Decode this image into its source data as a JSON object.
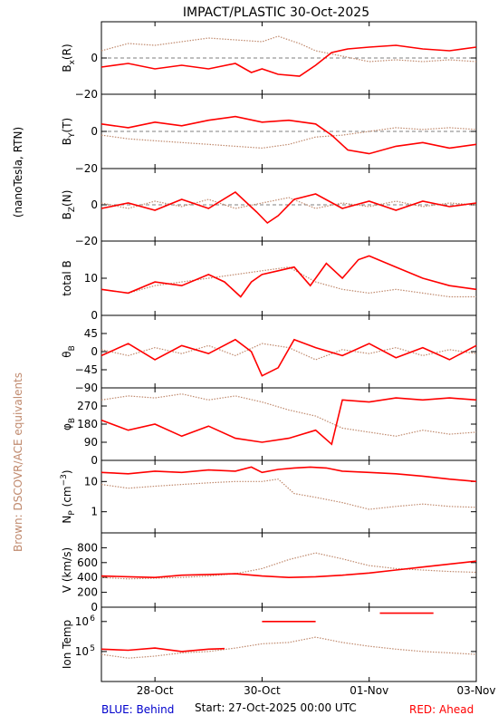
{
  "title": "IMPACT/PLASTIC   30-Oct-2025",
  "side_label_units": "(nanoTesla, RTN)",
  "side_label_brown": "Brown: DSCOVR/ACE equivalents",
  "footer": {
    "blue_label": "BLUE: Behind",
    "start_label": "Start: 27-Oct-2025 00:00 UTC",
    "red_label": "RED: Ahead"
  },
  "colors": {
    "ahead": "#ff0000",
    "brown": "#c08a6e",
    "behind": "#0000cc",
    "axis": "#000000"
  },
  "x_axis": {
    "range_days": [
      0,
      7
    ],
    "tick_labels": [
      {
        "day": 1,
        "label": "28-Oct"
      },
      {
        "day": 3,
        "label": "30-Oct"
      },
      {
        "day": 5,
        "label": "01-Nov"
      },
      {
        "day": 7,
        "label": "03-Nov"
      }
    ]
  },
  "chart_data": [
    {
      "type": "line",
      "ylabel": "Bx(R)",
      "ylabel_main": "B",
      "ylabel_sub": "x",
      "ylabel_rest": "(R)",
      "ylim": [
        -20,
        20
      ],
      "yticks": [
        {
          "v": 0,
          "l": "0"
        },
        {
          "v": -20,
          "l": "−20"
        }
      ],
      "zero_line": true,
      "series": [
        {
          "color_key": "ahead",
          "x": [
            0,
            0.5,
            1,
            1.5,
            2,
            2.5,
            2.8,
            3,
            3.3,
            3.7,
            4,
            4.3,
            4.6,
            5,
            5.5,
            6,
            6.5,
            7
          ],
          "y": [
            -5,
            -3,
            -6,
            -4,
            -6,
            -3,
            -8,
            -6,
            -9,
            -10,
            -4,
            3,
            5,
            6,
            7,
            5,
            4,
            6
          ]
        },
        {
          "color_key": "brown",
          "x": [
            0,
            0.5,
            1,
            1.5,
            2,
            2.5,
            3,
            3.3,
            3.7,
            4,
            4.5,
            5,
            5.5,
            6,
            6.5,
            7
          ],
          "y": [
            4,
            8,
            7,
            9,
            11,
            10,
            9,
            12,
            8,
            4,
            1,
            -2,
            -1,
            -2,
            -1,
            -2
          ]
        }
      ]
    },
    {
      "type": "line",
      "ylabel": "By(T)",
      "ylabel_main": "B",
      "ylabel_sub": "Y",
      "ylabel_rest": "(T)",
      "ylim": [
        -20,
        20
      ],
      "yticks": [
        {
          "v": 0,
          "l": "0"
        },
        {
          "v": -20,
          "l": "−20"
        }
      ],
      "zero_line": true,
      "series": [
        {
          "color_key": "ahead",
          "x": [
            0,
            0.5,
            1,
            1.5,
            2,
            2.5,
            3,
            3.5,
            4,
            4.3,
            4.6,
            5,
            5.5,
            6,
            6.5,
            7
          ],
          "y": [
            4,
            2,
            5,
            3,
            6,
            8,
            5,
            6,
            4,
            -2,
            -10,
            -12,
            -8,
            -6,
            -9,
            -7
          ]
        },
        {
          "color_key": "brown",
          "x": [
            0,
            0.5,
            1,
            1.5,
            2,
            2.5,
            3,
            3.5,
            4,
            4.5,
            5,
            5.5,
            6,
            6.5,
            7
          ],
          "y": [
            -2,
            -4,
            -5,
            -6,
            -7,
            -8,
            -9,
            -7,
            -3,
            -2,
            0,
            2,
            1,
            2,
            1
          ]
        }
      ]
    },
    {
      "type": "line",
      "ylabel": "Bz(N)",
      "ylabel_main": "B",
      "ylabel_sub": "Z",
      "ylabel_rest": "(N)",
      "ylim": [
        -20,
        20
      ],
      "yticks": [
        {
          "v": 0,
          "l": "0"
        },
        {
          "v": -20,
          "l": "−20"
        }
      ],
      "zero_line": true,
      "series": [
        {
          "color_key": "ahead",
          "x": [
            0,
            0.5,
            1,
            1.5,
            2,
            2.5,
            2.9,
            3.1,
            3.3,
            3.6,
            4,
            4.5,
            5,
            5.5,
            6,
            6.5,
            7
          ],
          "y": [
            -2,
            1,
            -3,
            3,
            -2,
            7,
            -4,
            -10,
            -6,
            3,
            6,
            -2,
            2,
            -3,
            2,
            -1,
            1
          ]
        },
        {
          "color_key": "brown",
          "x": [
            0,
            0.5,
            1,
            1.5,
            2,
            2.5,
            3,
            3.5,
            4,
            4.5,
            5,
            5.5,
            6,
            6.5,
            7
          ],
          "y": [
            1,
            -2,
            2,
            -1,
            3,
            -2,
            1,
            4,
            -2,
            1,
            -1,
            2,
            -1,
            1,
            0
          ]
        }
      ]
    },
    {
      "type": "line",
      "ylabel": "total B",
      "ylabel_main": "total B",
      "ylabel_sub": "",
      "ylabel_rest": "",
      "ylim": [
        0,
        20
      ],
      "yticks": [
        {
          "v": 10,
          "l": "10"
        },
        {
          "v": 0,
          "l": "0"
        }
      ],
      "zero_line": false,
      "series": [
        {
          "color_key": "ahead",
          "x": [
            0,
            0.5,
            1,
            1.5,
            2,
            2.3,
            2.6,
            2.8,
            3,
            3.3,
            3.6,
            3.9,
            4.2,
            4.5,
            4.8,
            5,
            5.5,
            6,
            6.5,
            7
          ],
          "y": [
            7,
            6,
            9,
            8,
            11,
            9,
            5,
            9,
            11,
            12,
            13,
            8,
            14,
            10,
            15,
            16,
            13,
            10,
            8,
            7
          ]
        },
        {
          "color_key": "brown",
          "x": [
            0,
            0.5,
            1,
            1.5,
            2,
            2.5,
            3,
            3.5,
            4,
            4.5,
            5,
            5.5,
            6,
            6.5,
            7
          ],
          "y": [
            7,
            6,
            8,
            9,
            10,
            11,
            12,
            13,
            9,
            7,
            6,
            7,
            6,
            5,
            5
          ]
        }
      ]
    },
    {
      "type": "line",
      "ylabel": "θB",
      "ylabel_main": "θ",
      "ylabel_sub": "B",
      "ylabel_rest": "",
      "ylim": [
        -90,
        90
      ],
      "yticks": [
        {
          "v": 45,
          "l": "45"
        },
        {
          "v": 0,
          "l": "0"
        },
        {
          "v": -45,
          "l": "−45"
        },
        {
          "v": -90,
          "l": "−90"
        }
      ],
      "zero_line": false,
      "series": [
        {
          "color_key": "ahead",
          "x": [
            0,
            0.5,
            1,
            1.5,
            2,
            2.5,
            2.8,
            3,
            3.3,
            3.6,
            4,
            4.5,
            5,
            5.5,
            6,
            6.5,
            7
          ],
          "y": [
            -10,
            20,
            -20,
            15,
            -5,
            30,
            0,
            -60,
            -40,
            30,
            10,
            -10,
            20,
            -15,
            10,
            -20,
            15
          ]
        },
        {
          "color_key": "brown",
          "x": [
            0,
            0.5,
            1,
            1.5,
            2,
            2.5,
            3,
            3.5,
            4,
            4.5,
            5,
            5.5,
            6,
            6.5,
            7
          ],
          "y": [
            5,
            -10,
            10,
            -5,
            15,
            -10,
            20,
            10,
            -20,
            5,
            -5,
            10,
            -10,
            5,
            -5
          ]
        }
      ]
    },
    {
      "type": "line",
      "ylabel": "φB",
      "ylabel_main": "φ",
      "ylabel_sub": "B",
      "ylabel_rest": "",
      "ylim": [
        0,
        360
      ],
      "yticks": [
        {
          "v": 270,
          "l": "270"
        },
        {
          "v": 180,
          "l": "180"
        },
        {
          "v": 90,
          "l": "90"
        },
        {
          "v": 0,
          "l": "0"
        }
      ],
      "zero_line": false,
      "series": [
        {
          "color_key": "ahead",
          "x": [
            0,
            0.5,
            1,
            1.5,
            2,
            2.5,
            3,
            3.5,
            4,
            4.3,
            4.5,
            5,
            5.5,
            6,
            6.5,
            7
          ],
          "y": [
            200,
            150,
            180,
            120,
            170,
            110,
            90,
            110,
            150,
            80,
            300,
            290,
            310,
            300,
            310,
            300
          ]
        },
        {
          "color_key": "brown",
          "x": [
            0,
            0.5,
            1,
            1.5,
            2,
            2.5,
            3,
            3.5,
            4,
            4.5,
            5,
            5.5,
            6,
            6.5,
            7
          ],
          "y": [
            300,
            320,
            310,
            330,
            300,
            320,
            290,
            250,
            220,
            160,
            140,
            120,
            150,
            130,
            140
          ]
        }
      ]
    },
    {
      "type": "line",
      "ylabel": "Np (cm−3)",
      "ylabel_main": "N",
      "ylabel_sub": "P",
      "ylabel_rest": " (cm",
      "ylabel_sup": "−3",
      "ylabel_close": ")",
      "log": true,
      "ylim": [
        0.2,
        50
      ],
      "yticks": [
        {
          "v": 10,
          "l": "10"
        },
        {
          "v": 1,
          "l": "1"
        }
      ],
      "zero_line": false,
      "series": [
        {
          "color_key": "ahead",
          "x": [
            0,
            0.5,
            1,
            1.5,
            2,
            2.5,
            2.8,
            3,
            3.3,
            3.6,
            3.9,
            4.2,
            4.5,
            5,
            5.5,
            6,
            6.5,
            7
          ],
          "y": [
            20,
            18,
            22,
            20,
            24,
            22,
            30,
            20,
            25,
            28,
            30,
            28,
            22,
            20,
            18,
            15,
            12,
            10
          ]
        },
        {
          "color_key": "brown",
          "x": [
            0,
            0.5,
            1,
            1.5,
            2,
            2.5,
            3,
            3.3,
            3.6,
            4,
            4.5,
            5,
            5.5,
            6,
            6.5,
            7
          ],
          "y": [
            8,
            6,
            7,
            8,
            9,
            10,
            10,
            12,
            4,
            3,
            2,
            1.2,
            1.5,
            1.8,
            1.5,
            1.4
          ]
        }
      ]
    },
    {
      "type": "line",
      "ylabel": "V (km/s)",
      "ylabel_main": "V (km/s)",
      "ylabel_sub": "",
      "ylabel_rest": "",
      "ylim": [
        0,
        1000
      ],
      "yticks": [
        {
          "v": 800,
          "l": "800"
        },
        {
          "v": 600,
          "l": "600"
        },
        {
          "v": 400,
          "l": "400"
        },
        {
          "v": 200,
          "l": "200"
        },
        {
          "v": 0,
          "l": "0"
        }
      ],
      "zero_line": false,
      "series": [
        {
          "color_key": "ahead",
          "x": [
            0,
            0.5,
            1,
            1.5,
            2,
            2.5,
            3,
            3.5,
            4,
            4.5,
            5,
            5.5,
            6,
            6.5,
            7
          ],
          "y": [
            420,
            410,
            400,
            430,
            440,
            450,
            420,
            400,
            410,
            430,
            460,
            500,
            540,
            580,
            620
          ]
        },
        {
          "color_key": "brown",
          "x": [
            0,
            0.5,
            1,
            1.5,
            2,
            2.5,
            3,
            3.5,
            4,
            4.5,
            5,
            5.5,
            6,
            6.5,
            7
          ],
          "y": [
            400,
            380,
            390,
            400,
            420,
            450,
            520,
            640,
            730,
            650,
            560,
            520,
            500,
            480,
            470
          ]
        }
      ]
    },
    {
      "type": "line",
      "ylabel": "Ion Temp",
      "ylabel_main": "Ion Temp",
      "ylabel_sub": "",
      "ylabel_rest": "",
      "log": true,
      "ylim": [
        10000,
        3000000
      ],
      "yticks": [
        {
          "v": 1000000,
          "l": "10",
          "sup": "6"
        },
        {
          "v": 100000,
          "l": "10",
          "sup": "5"
        }
      ],
      "zero_line": false,
      "series": [
        {
          "color_key": "ahead",
          "x": [
            0,
            0.5,
            1,
            1.5,
            2,
            2.3
          ],
          "y": [
            120000,
            110000,
            130000,
            100000,
            120000,
            125000
          ]
        },
        {
          "color_key": "ahead",
          "x": [
            3,
            4
          ],
          "y": [
            1000000,
            1000000
          ]
        },
        {
          "color_key": "ahead",
          "x": [
            5.2,
            6.2
          ],
          "y": [
            1900000,
            1900000
          ]
        },
        {
          "color_key": "brown",
          "x": [
            0,
            0.5,
            1,
            1.5,
            2,
            2.5,
            3,
            3.5,
            4,
            4.5,
            5,
            5.5,
            6,
            6.5,
            7
          ],
          "y": [
            80000,
            60000,
            70000,
            90000,
            100000,
            130000,
            180000,
            200000,
            300000,
            200000,
            150000,
            120000,
            100000,
            90000,
            80000
          ]
        }
      ]
    }
  ]
}
